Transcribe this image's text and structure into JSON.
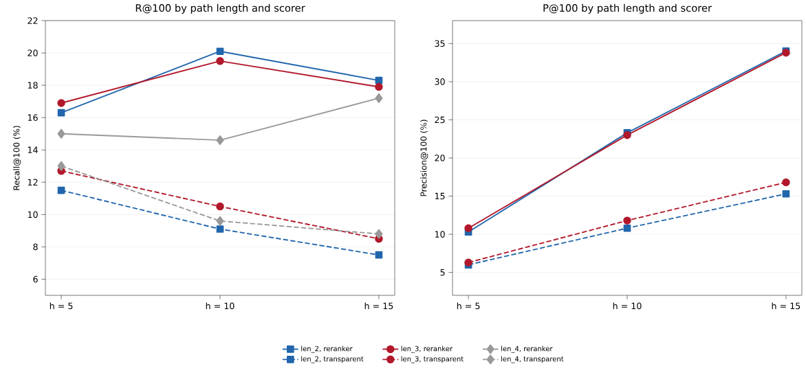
{
  "chart_data": [
    {
      "type": "line",
      "title": "R@100 by path length and scorer",
      "ylabel": "Recall@100 (%)",
      "categories": [
        "h = 5",
        "h = 10",
        "h = 15"
      ],
      "ylim": [
        5,
        22
      ],
      "yticks": [
        6,
        8,
        10,
        12,
        14,
        16,
        18,
        20,
        22
      ],
      "grid": "y",
      "legend": "bottom",
      "series": [
        {
          "name": "len_2, reranker",
          "color": "#2166ac",
          "marker": "square",
          "line_style": "solid",
          "values": [
            16.3,
            20.1,
            18.3
          ]
        },
        {
          "name": "len_2, transparent",
          "color": "#2166ac",
          "marker": "square",
          "line_style": "dashed",
          "values": [
            11.5,
            9.1,
            7.5
          ]
        },
        {
          "name": "len_3, reranker",
          "color": "#b2182b",
          "marker": "circle",
          "line_style": "solid",
          "values": [
            16.9,
            19.5,
            17.9
          ]
        },
        {
          "name": "len_3, transparent",
          "color": "#b2182b",
          "marker": "circle",
          "line_style": "dashed",
          "values": [
            12.7,
            10.5,
            8.5
          ]
        },
        {
          "name": "len_4, reranker",
          "color": "#999999",
          "marker": "diamond",
          "line_style": "solid",
          "values": [
            15.0,
            14.6,
            17.2
          ]
        },
        {
          "name": "len_4, transparent",
          "color": "#999999",
          "marker": "diamond",
          "line_style": "dashed",
          "values": [
            13.0,
            9.6,
            8.8
          ]
        }
      ]
    },
    {
      "type": "line",
      "title": "P@100 by path length and scorer",
      "ylabel": "Precision@100 (%)",
      "categories": [
        "h = 5",
        "h = 10",
        "h = 15"
      ],
      "ylim": [
        2,
        38
      ],
      "yticks": [
        5,
        10,
        15,
        20,
        25,
        30,
        35
      ],
      "grid": "y",
      "series": [
        {
          "color": "#2166ac",
          "marker": "square",
          "line_style": "solid",
          "values": [
            10.3,
            23.3,
            34.0
          ]
        },
        {
          "color": "#2166ac",
          "marker": "square",
          "line_style": "dashed",
          "values": [
            6.0,
            10.8,
            15.3
          ]
        },
        {
          "color": "#b2182b",
          "marker": "circle",
          "line_style": "solid",
          "values": [
            10.8,
            23.0,
            33.8
          ]
        },
        {
          "color": "#b2182b",
          "marker": "circle",
          "line_style": "dashed",
          "values": [
            6.3,
            11.8,
            16.8
          ]
        }
      ]
    }
  ]
}
